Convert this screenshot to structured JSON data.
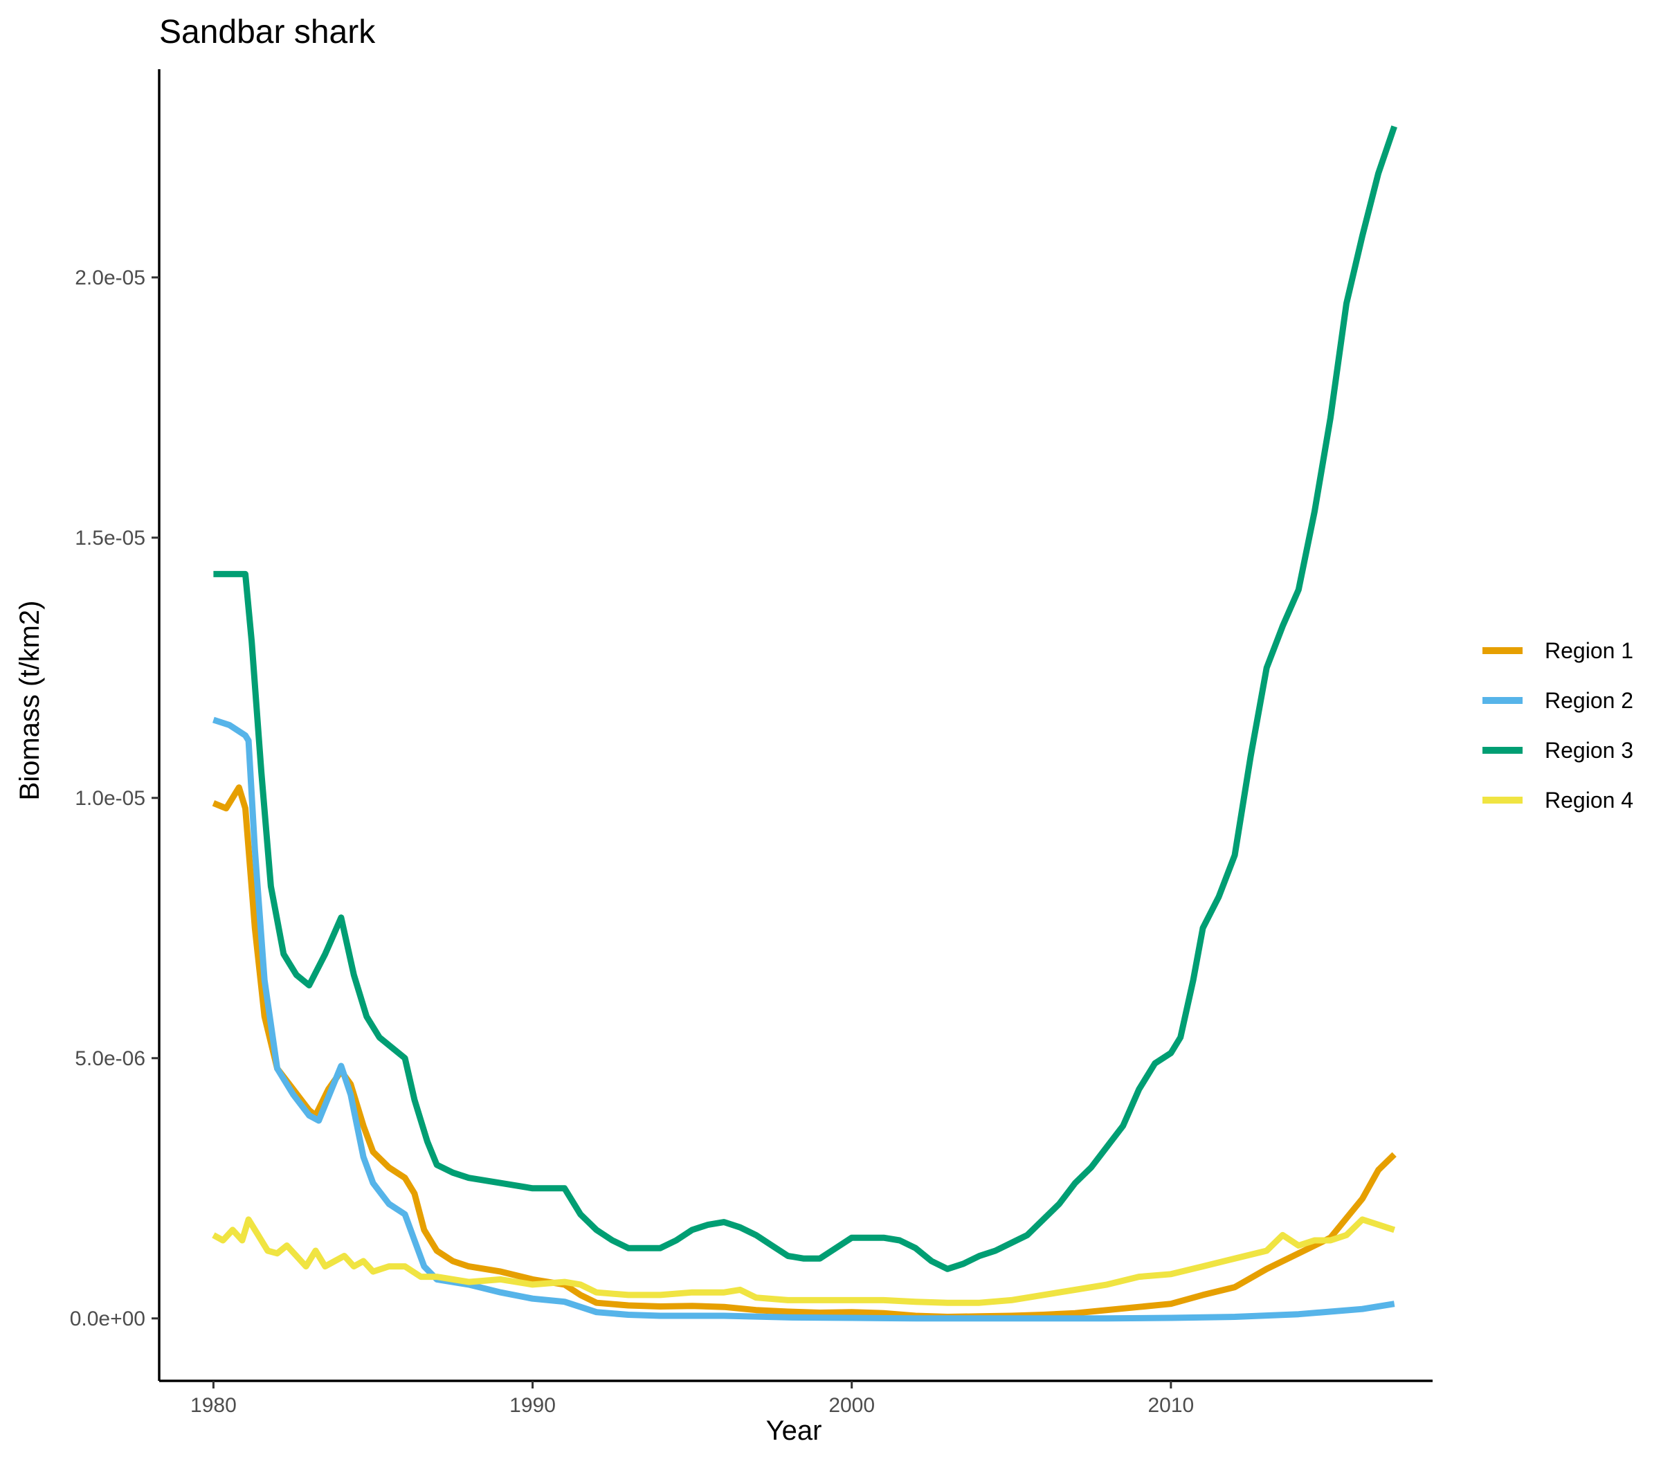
{
  "chart_data": {
    "type": "line",
    "title": "Sandbar shark",
    "xlabel": "Year",
    "ylabel": "Biomass (t/km2)",
    "xlim": [
      1978.3,
      2018.2
    ],
    "ylim": [
      -1.2e-06,
      2.4e-05
    ],
    "x_ticks": [
      1980,
      1990,
      2000,
      2010
    ],
    "x_tick_labels": [
      "1980",
      "1990",
      "2000",
      "2010"
    ],
    "y_ticks": [
      0,
      5e-06,
      1e-05,
      1.5e-05,
      2e-05
    ],
    "y_tick_labels": [
      "0.0e+00",
      "5.0e-06",
      "1.0e-05",
      "1.5e-05",
      "2.0e-05"
    ],
    "grid": false,
    "legend": "right",
    "series": [
      {
        "name": "Region 1",
        "color": "#E69F00",
        "points": [
          [
            1980,
            9.9e-06
          ],
          [
            1980.4,
            9.8e-06
          ],
          [
            1980.8,
            1.02e-05
          ],
          [
            1981.0,
            9.8e-06
          ],
          [
            1981.3,
            7.5e-06
          ],
          [
            1981.6,
            5.8e-06
          ],
          [
            1982.0,
            4.8e-06
          ],
          [
            1982.5,
            4.4e-06
          ],
          [
            1983.0,
            4e-06
          ],
          [
            1983.2,
            3.9e-06
          ],
          [
            1983.6,
            4.4e-06
          ],
          [
            1984.0,
            4.75e-06
          ],
          [
            1984.3,
            4.5e-06
          ],
          [
            1984.7,
            3.7e-06
          ],
          [
            1985.0,
            3.2e-06
          ],
          [
            1985.5,
            2.9e-06
          ],
          [
            1986.0,
            2.7e-06
          ],
          [
            1986.3,
            2.4e-06
          ],
          [
            1986.6,
            1.7e-06
          ],
          [
            1987.0,
            1.3e-06
          ],
          [
            1987.5,
            1.1e-06
          ],
          [
            1988.0,
            1e-06
          ],
          [
            1989.0,
            9e-07
          ],
          [
            1990.0,
            7.5e-07
          ],
          [
            1991.0,
            6.5e-07
          ],
          [
            1991.5,
            4.5e-07
          ],
          [
            1992.0,
            3e-07
          ],
          [
            1993.0,
            2.5e-07
          ],
          [
            1994.0,
            2.3e-07
          ],
          [
            1995.0,
            2.4e-07
          ],
          [
            1996.0,
            2.2e-07
          ],
          [
            1997.0,
            1.6e-07
          ],
          [
            1998.0,
            1.3e-07
          ],
          [
            1999.0,
            1.1e-07
          ],
          [
            2000.0,
            1.2e-07
          ],
          [
            2001.0,
            1e-07
          ],
          [
            2002.0,
            5e-08
          ],
          [
            2003.0,
            3e-08
          ],
          [
            2004.0,
            4e-08
          ],
          [
            2005.0,
            5e-08
          ],
          [
            2006.0,
            7e-08
          ],
          [
            2007.0,
            1e-07
          ],
          [
            2008.0,
            1.6e-07
          ],
          [
            2009.0,
            2.2e-07
          ],
          [
            2010.0,
            2.8e-07
          ],
          [
            2011.0,
            4.5e-07
          ],
          [
            2012.0,
            6e-07
          ],
          [
            2013.0,
            9.5e-07
          ],
          [
            2014.0,
            1.25e-06
          ],
          [
            2015.0,
            1.55e-06
          ],
          [
            2016.0,
            2.3e-06
          ],
          [
            2016.5,
            2.85e-06
          ],
          [
            2017.0,
            3.15e-06
          ]
        ]
      },
      {
        "name": "Region 2",
        "color": "#56B4E9",
        "points": [
          [
            1980,
            1.15e-05
          ],
          [
            1980.5,
            1.14e-05
          ],
          [
            1981.0,
            1.12e-05
          ],
          [
            1981.1,
            1.11e-05
          ],
          [
            1981.3,
            9e-06
          ],
          [
            1981.6,
            6.5e-06
          ],
          [
            1982.0,
            4.8e-06
          ],
          [
            1982.5,
            4.3e-06
          ],
          [
            1983.0,
            3.9e-06
          ],
          [
            1983.3,
            3.8e-06
          ],
          [
            1983.7,
            4.4e-06
          ],
          [
            1984.0,
            4.85e-06
          ],
          [
            1984.3,
            4.3e-06
          ],
          [
            1984.7,
            3.1e-06
          ],
          [
            1985.0,
            2.6e-06
          ],
          [
            1985.5,
            2.2e-06
          ],
          [
            1986.0,
            2e-06
          ],
          [
            1986.3,
            1.5e-06
          ],
          [
            1986.6,
            1e-06
          ],
          [
            1987.0,
            7.5e-07
          ],
          [
            1988.0,
            6.5e-07
          ],
          [
            1989.0,
            5e-07
          ],
          [
            1990.0,
            3.8e-07
          ],
          [
            1991.0,
            3.2e-07
          ],
          [
            1992.0,
            1.2e-07
          ],
          [
            1993.0,
            7e-08
          ],
          [
            1994.0,
            5e-08
          ],
          [
            1996.0,
            5e-08
          ],
          [
            1998.0,
            2e-08
          ],
          [
            2000.0,
            1e-08
          ],
          [
            2002.0,
            0
          ],
          [
            2004.0,
            0
          ],
          [
            2006.0,
            0
          ],
          [
            2008.0,
            0
          ],
          [
            2010.0,
            1e-08
          ],
          [
            2012.0,
            3e-08
          ],
          [
            2014.0,
            8e-08
          ],
          [
            2016.0,
            1.8e-07
          ],
          [
            2017.0,
            2.8e-07
          ]
        ]
      },
      {
        "name": "Region 3",
        "color": "#009E73",
        "points": [
          [
            1980,
            1.43e-05
          ],
          [
            1980.5,
            1.43e-05
          ],
          [
            1981.0,
            1.43e-05
          ],
          [
            1981.2,
            1.3e-05
          ],
          [
            1981.5,
            1.05e-05
          ],
          [
            1981.8,
            8.3e-06
          ],
          [
            1982.2,
            7e-06
          ],
          [
            1982.6,
            6.6e-06
          ],
          [
            1983.0,
            6.4e-06
          ],
          [
            1983.5,
            7e-06
          ],
          [
            1984.0,
            7.7e-06
          ],
          [
            1984.4,
            6.6e-06
          ],
          [
            1984.8,
            5.8e-06
          ],
          [
            1985.2,
            5.4e-06
          ],
          [
            1985.6,
            5.2e-06
          ],
          [
            1986.0,
            5e-06
          ],
          [
            1986.3,
            4.2e-06
          ],
          [
            1986.7,
            3.4e-06
          ],
          [
            1987.0,
            2.95e-06
          ],
          [
            1987.5,
            2.8e-06
          ],
          [
            1988.0,
            2.7e-06
          ],
          [
            1989.0,
            2.6e-06
          ],
          [
            1990.0,
            2.5e-06
          ],
          [
            1990.5,
            2.5e-06
          ],
          [
            1991.0,
            2.5e-06
          ],
          [
            1991.5,
            2e-06
          ],
          [
            1992.0,
            1.7e-06
          ],
          [
            1992.5,
            1.5e-06
          ],
          [
            1993.0,
            1.35e-06
          ],
          [
            1994.0,
            1.35e-06
          ],
          [
            1994.5,
            1.5e-06
          ],
          [
            1995.0,
            1.7e-06
          ],
          [
            1995.5,
            1.8e-06
          ],
          [
            1996.0,
            1.85e-06
          ],
          [
            1996.5,
            1.75e-06
          ],
          [
            1997.0,
            1.6e-06
          ],
          [
            1997.5,
            1.4e-06
          ],
          [
            1998.0,
            1.2e-06
          ],
          [
            1998.5,
            1.15e-06
          ],
          [
            1999.0,
            1.15e-06
          ],
          [
            1999.5,
            1.35e-06
          ],
          [
            2000.0,
            1.55e-06
          ],
          [
            2001.0,
            1.55e-06
          ],
          [
            2001.5,
            1.5e-06
          ],
          [
            2002.0,
            1.35e-06
          ],
          [
            2002.5,
            1.1e-06
          ],
          [
            2003.0,
            9.5e-07
          ],
          [
            2003.5,
            1.05e-06
          ],
          [
            2004.0,
            1.2e-06
          ],
          [
            2004.5,
            1.3e-06
          ],
          [
            2005.0,
            1.45e-06
          ],
          [
            2005.5,
            1.6e-06
          ],
          [
            2006.0,
            1.9e-06
          ],
          [
            2006.5,
            2.2e-06
          ],
          [
            2007.0,
            2.6e-06
          ],
          [
            2007.5,
            2.9e-06
          ],
          [
            2008.0,
            3.3e-06
          ],
          [
            2008.5,
            3.7e-06
          ],
          [
            2009.0,
            4.4e-06
          ],
          [
            2009.5,
            4.9e-06
          ],
          [
            2010.0,
            5.1e-06
          ],
          [
            2010.3,
            5.4e-06
          ],
          [
            2010.7,
            6.5e-06
          ],
          [
            2011.0,
            7.5e-06
          ],
          [
            2011.5,
            8.1e-06
          ],
          [
            2012.0,
            8.9e-06
          ],
          [
            2012.5,
            1.08e-05
          ],
          [
            2013.0,
            1.25e-05
          ],
          [
            2013.5,
            1.33e-05
          ],
          [
            2014.0,
            1.4e-05
          ],
          [
            2014.5,
            1.55e-05
          ],
          [
            2015.0,
            1.73e-05
          ],
          [
            2015.5,
            1.95e-05
          ],
          [
            2016.0,
            2.08e-05
          ],
          [
            2016.5,
            2.2e-05
          ],
          [
            2017.0,
            2.29e-05
          ]
        ]
      },
      {
        "name": "Region 4",
        "color": "#F0E442",
        "points": [
          [
            1980,
            1.6e-06
          ],
          [
            1980.3,
            1.5e-06
          ],
          [
            1980.6,
            1.7e-06
          ],
          [
            1980.9,
            1.5e-06
          ],
          [
            1981.1,
            1.9e-06
          ],
          [
            1981.4,
            1.6e-06
          ],
          [
            1981.7,
            1.3e-06
          ],
          [
            1982.0,
            1.25e-06
          ],
          [
            1982.3,
            1.4e-06
          ],
          [
            1982.6,
            1.2e-06
          ],
          [
            1982.9,
            1e-06
          ],
          [
            1983.2,
            1.3e-06
          ],
          [
            1983.5,
            1e-06
          ],
          [
            1983.8,
            1.1e-06
          ],
          [
            1984.1,
            1.2e-06
          ],
          [
            1984.4,
            1e-06
          ],
          [
            1984.7,
            1.1e-06
          ],
          [
            1985.0,
            9e-07
          ],
          [
            1985.5,
            1e-06
          ],
          [
            1986.0,
            1e-06
          ],
          [
            1986.5,
            8e-07
          ],
          [
            1987.0,
            8e-07
          ],
          [
            1988.0,
            7e-07
          ],
          [
            1989.0,
            7.5e-07
          ],
          [
            1990.0,
            6.5e-07
          ],
          [
            1991.0,
            7e-07
          ],
          [
            1991.5,
            6.5e-07
          ],
          [
            1992.0,
            5e-07
          ],
          [
            1993.0,
            4.5e-07
          ],
          [
            1994.0,
            4.5e-07
          ],
          [
            1995.0,
            5e-07
          ],
          [
            1996.0,
            5e-07
          ],
          [
            1996.5,
            5.5e-07
          ],
          [
            1997.0,
            4e-07
          ],
          [
            1998.0,
            3.5e-07
          ],
          [
            1999.0,
            3.5e-07
          ],
          [
            2000.0,
            3.5e-07
          ],
          [
            2001.0,
            3.5e-07
          ],
          [
            2002.0,
            3.2e-07
          ],
          [
            2003.0,
            3e-07
          ],
          [
            2004.0,
            3e-07
          ],
          [
            2005.0,
            3.5e-07
          ],
          [
            2006.0,
            4.5e-07
          ],
          [
            2007.0,
            5.5e-07
          ],
          [
            2008.0,
            6.5e-07
          ],
          [
            2009.0,
            8e-07
          ],
          [
            2010.0,
            8.5e-07
          ],
          [
            2011.0,
            1e-06
          ],
          [
            2012.0,
            1.15e-06
          ],
          [
            2013.0,
            1.3e-06
          ],
          [
            2013.5,
            1.6e-06
          ],
          [
            2014.0,
            1.4e-06
          ],
          [
            2014.5,
            1.5e-06
          ],
          [
            2015.0,
            1.5e-06
          ],
          [
            2015.5,
            1.6e-06
          ],
          [
            2016.0,
            1.9e-06
          ],
          [
            2016.5,
            1.8e-06
          ],
          [
            2017.0,
            1.7e-06
          ]
        ]
      }
    ]
  }
}
